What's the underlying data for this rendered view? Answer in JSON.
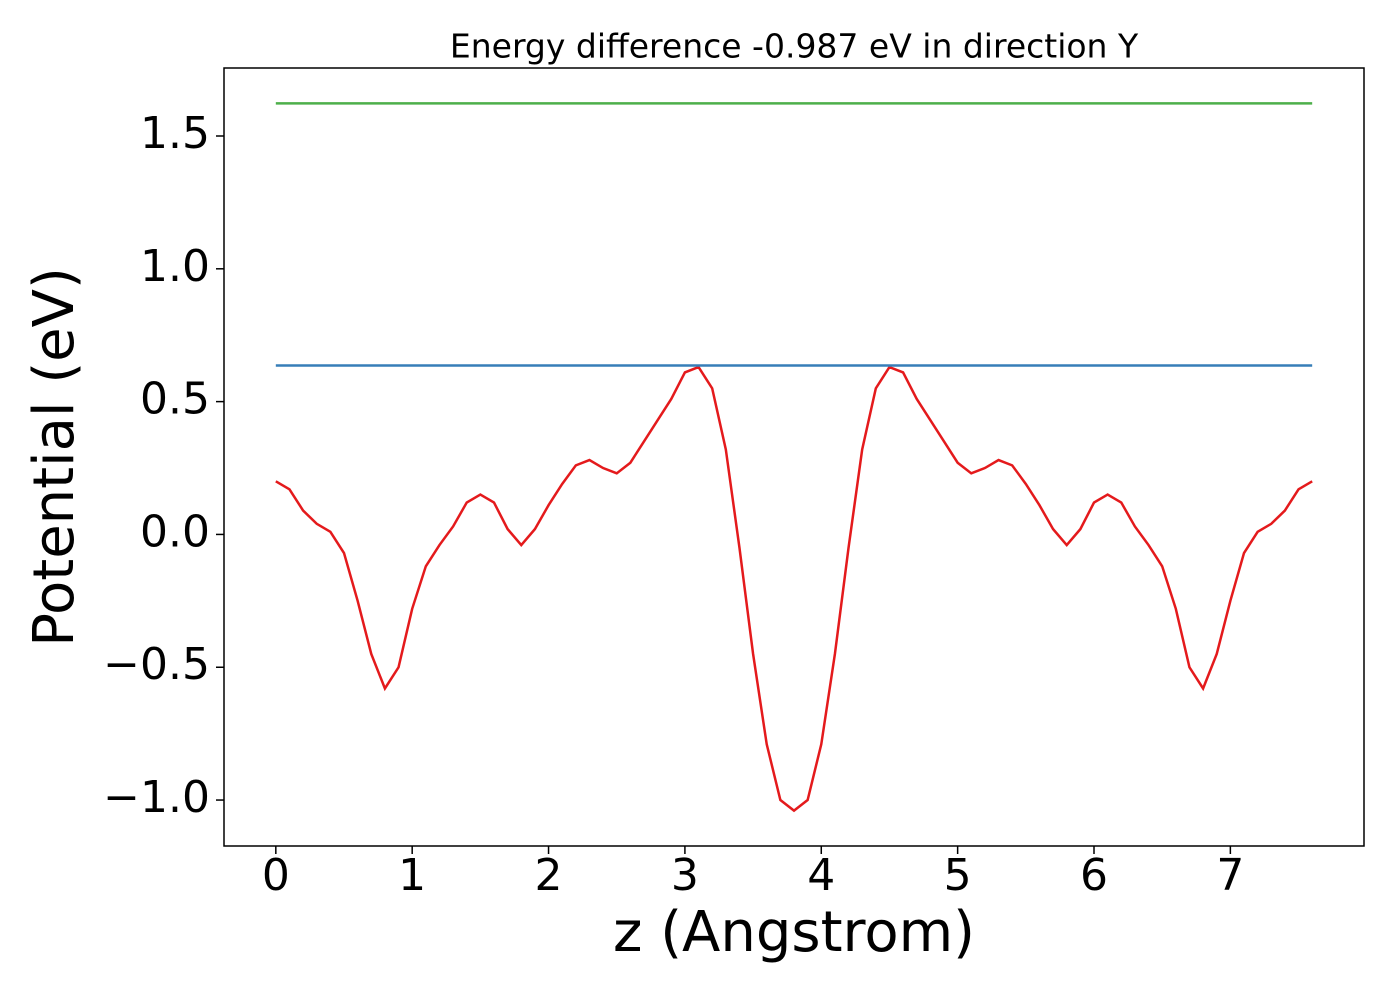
{
  "chart_data": {
    "type": "line",
    "title": "Energy difference -0.987 eV in direction Y",
    "x_label": "z (Angstrom)",
    "y_label": "Potential (eV)",
    "xlim": [
      -0.38,
      7.98
    ],
    "ylim": [
      -1.173,
      1.756
    ],
    "xticks": [
      0,
      1,
      2,
      3,
      4,
      5,
      6,
      7
    ],
    "yticks": [
      {
        "value": -1.0,
        "label": "−1.0"
      },
      {
        "value": -0.5,
        "label": "−0.5"
      },
      {
        "value": 0,
        "label": "0.0"
      },
      0.5,
      {
        "value": 1.0,
        "label": "1.0"
      },
      1.5
    ],
    "series": [
      {
        "color": "#e41a1c",
        "x": [
          0,
          0.1,
          0.2,
          0.3,
          0.4,
          0.5,
          0.6,
          0.7,
          0.8,
          0.9,
          1.0,
          1.1,
          1.2,
          1.3,
          1.4,
          1.5,
          1.6,
          1.7,
          1.8,
          1.9,
          2.0,
          2.1,
          2.2,
          2.3,
          2.4,
          2.5,
          2.6,
          2.7,
          2.8,
          2.9,
          3.0,
          3.1,
          3.2,
          3.3,
          3.4,
          3.5,
          3.6,
          3.7,
          3.8,
          3.9,
          4.0,
          4.1,
          4.2,
          4.3,
          4.4,
          4.5,
          4.6,
          4.7,
          4.8,
          4.9,
          5.0,
          5.1,
          5.2,
          5.3,
          5.4,
          5.5,
          5.6,
          5.7,
          5.8,
          5.9,
          6.0,
          6.1,
          6.2,
          6.3,
          6.4,
          6.5,
          6.6,
          6.7,
          6.8,
          6.9,
          7.0,
          7.1,
          7.2,
          7.3,
          7.4,
          7.5,
          7.6
        ],
        "values": [
          0.2,
          0.17,
          0.09,
          0.04,
          0.01,
          -0.07,
          -0.25,
          -0.45,
          -0.58,
          -0.5,
          -0.28,
          -0.12,
          -0.04,
          0.03,
          0.12,
          0.15,
          0.12,
          0.02,
          -0.04,
          0.02,
          0.11,
          0.19,
          0.26,
          0.28,
          0.25,
          0.23,
          0.27,
          0.35,
          0.43,
          0.51,
          0.61,
          0.63,
          0.55,
          0.32,
          -0.05,
          -0.45,
          -0.79,
          -1.0,
          -1.04,
          -1.0,
          -0.79,
          -0.45,
          -0.05,
          0.32,
          0.55,
          0.63,
          0.61,
          0.51,
          0.43,
          0.35,
          0.27,
          0.23,
          0.25,
          0.28,
          0.26,
          0.19,
          0.11,
          0.02,
          -0.04,
          0.02,
          0.12,
          0.15,
          0.12,
          0.03,
          -0.04,
          -0.12,
          -0.28,
          -0.5,
          -0.58,
          -0.45,
          -0.25,
          -0.07,
          0.01,
          0.04,
          0.09,
          0.17,
          0.2
        ]
      },
      {
        "color": "#377eb8",
        "x": [
          0,
          7.6
        ],
        "values": [
          0.636,
          0.636
        ]
      },
      {
        "color": "#4daf4a",
        "x": [
          0,
          7.6
        ],
        "values": [
          1.623,
          1.623
        ]
      }
    ]
  }
}
